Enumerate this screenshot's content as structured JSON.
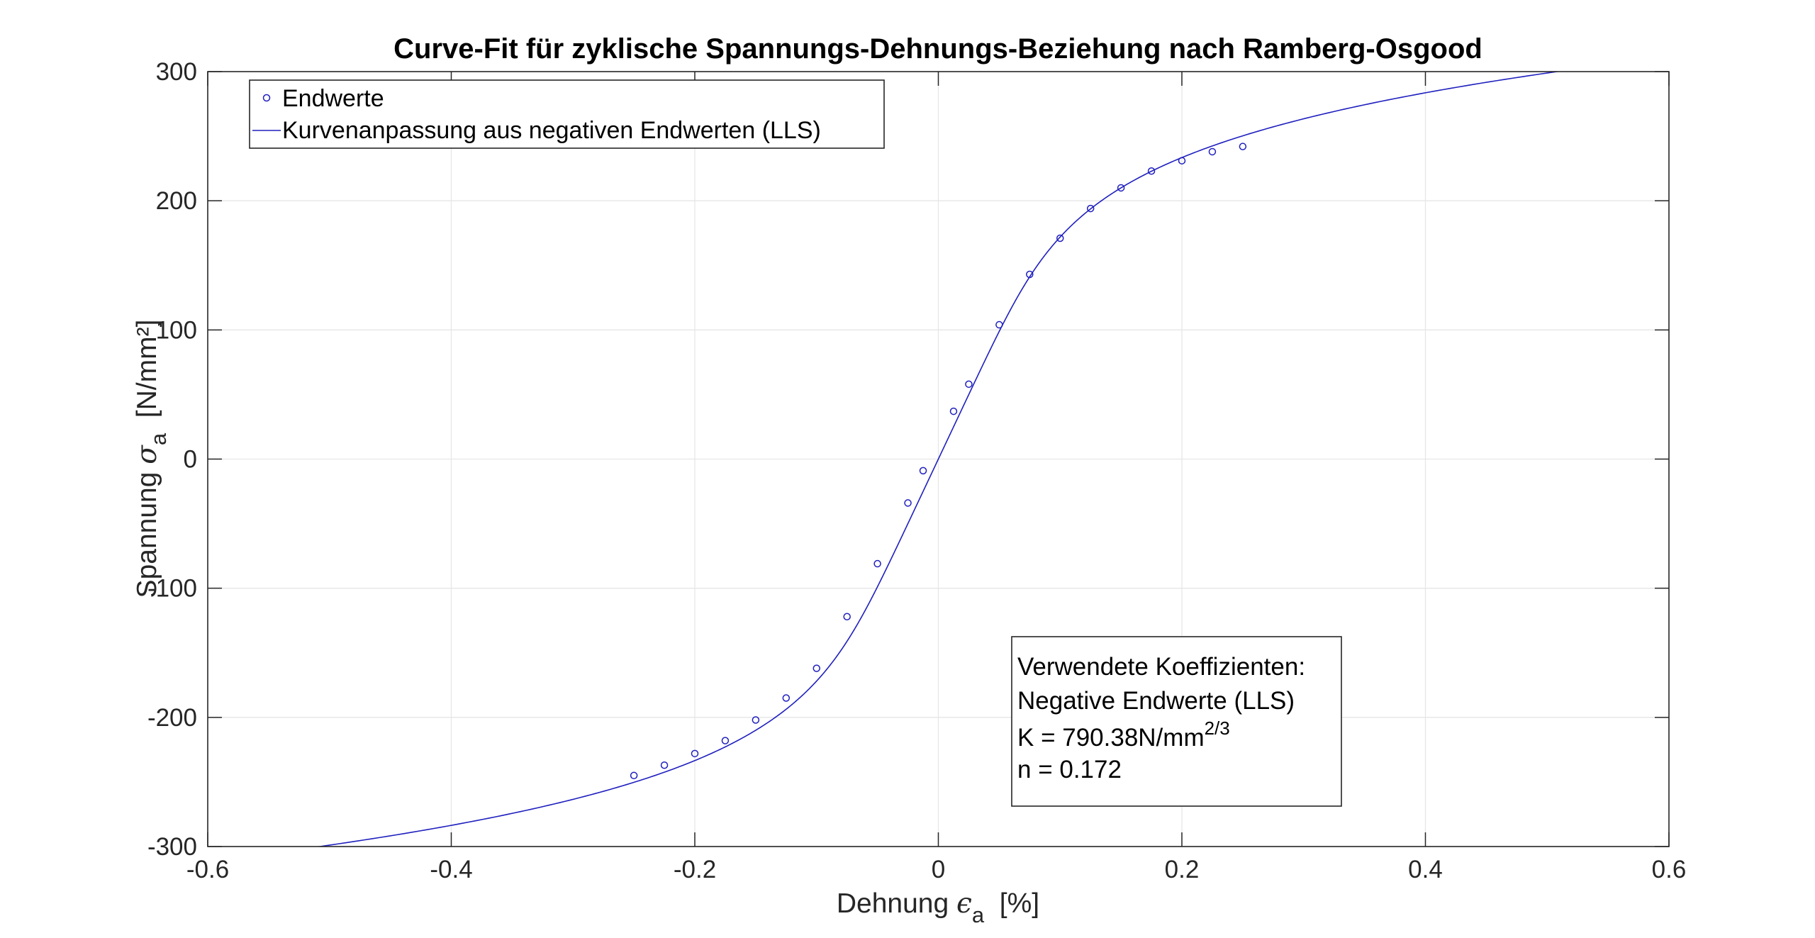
{
  "chart_data": {
    "type": "scatter",
    "title": "Curve-Fit für zyklische Spannungs-Dehnungs-Beziehung nach Ramberg-Osgood",
    "xlabel": {
      "prefix": "Dehnung ",
      "symbol": "ϵ",
      "subscript": "a",
      "suffix": "  [%]"
    },
    "ylabel": {
      "prefix": "Spannung ",
      "symbol": "σ",
      "subscript": "a",
      "suffix": "  [N/mm²]"
    },
    "xlim": [
      -0.6,
      0.6
    ],
    "ylim": [
      -300,
      300
    ],
    "xticks": [
      -0.6,
      -0.4,
      -0.2,
      0,
      0.2,
      0.4,
      0.6
    ],
    "yticks": [
      -300,
      -200,
      -100,
      0,
      100,
      200,
      300
    ],
    "xtick_labels": [
      "-0.6",
      "-0.4",
      "-0.2",
      "0",
      "0.2",
      "0.4",
      "0.6"
    ],
    "ytick_labels": [
      "-300",
      "-200",
      "-100",
      "0",
      "100",
      "200",
      "300"
    ],
    "grid": true,
    "legend_position": "top-left",
    "series": [
      {
        "name": "Endwerte",
        "kind": "markers",
        "color": "#1f1fbf",
        "x": [
          -0.25,
          -0.225,
          -0.2,
          -0.175,
          -0.15,
          -0.125,
          -0.1,
          -0.075,
          -0.05,
          -0.025,
          -0.0125,
          0.0125,
          0.025,
          0.05,
          0.075,
          0.1,
          0.125,
          0.15,
          0.175,
          0.2,
          0.225,
          0.25
        ],
        "y": [
          -245,
          -237,
          -228,
          -218,
          -202,
          -185,
          -162,
          -122,
          -81,
          -34,
          -9,
          37,
          58,
          104,
          143,
          171,
          194,
          210,
          223,
          231,
          238,
          242
        ]
      },
      {
        "name": "Kurvenanpassung aus negativen Endwerten (LLS)",
        "kind": "line",
        "color": "#1f1fbf",
        "model": "ramberg-osgood",
        "E_per_percent": 2000,
        "K": 790.38,
        "n": 0.172
      }
    ],
    "annotation": {
      "lines": [
        "Verwendete Koeffizienten:",
        "Negative Endwerte (LLS)"
      ],
      "k_text": "K = 790.38N/mm",
      "k_exponent": "2/3",
      "n_text": "n = 0.172"
    }
  }
}
